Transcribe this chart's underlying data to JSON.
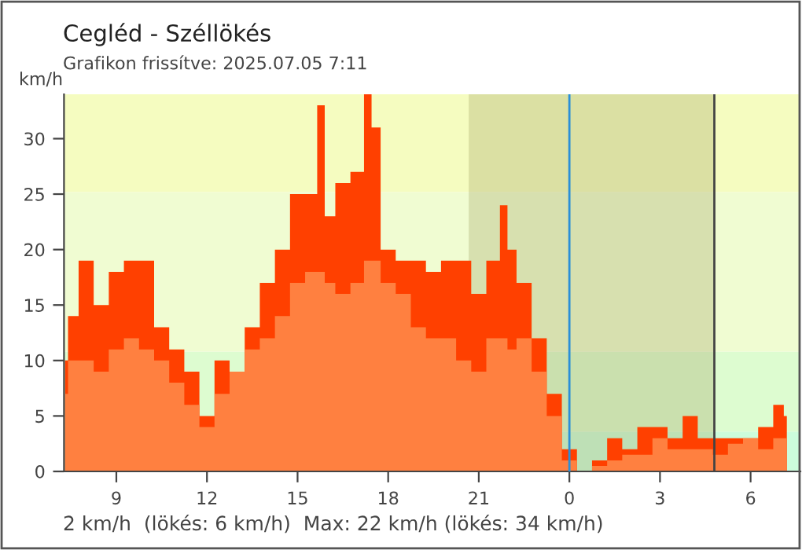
{
  "chart_data": {
    "type": "area",
    "title": "Cegléd - Széllökés",
    "subtitle": "Grafikon frissítve: 2025.07.05 7:11",
    "ylabel": "km/h",
    "annotations": [
      "2 km/h  (lökés: 6 km/h)  Max: 22 km/h (lökés: 34 km/h)"
    ],
    "x": [
      "2025-07-04T07:18",
      "2025-07-04T07:30",
      "2025-07-04T08:00",
      "2025-07-04T08:30",
      "2025-07-04T09:00",
      "2025-07-04T09:30",
      "2025-07-04T10:00",
      "2025-07-04T10:30",
      "2025-07-04T11:00",
      "2025-07-04T11:30",
      "2025-07-04T12:00",
      "2025-07-04T12:30",
      "2025-07-04T13:00",
      "2025-07-04T13:30",
      "2025-07-04T14:00",
      "2025-07-04T14:30",
      "2025-07-04T15:00",
      "2025-07-04T15:30",
      "2025-07-04T15:48",
      "2025-07-04T16:00",
      "2025-07-04T16:30",
      "2025-07-04T17:00",
      "2025-07-04T17:24",
      "2025-07-04T17:30",
      "2025-07-04T18:00",
      "2025-07-04T18:30",
      "2025-07-04T19:00",
      "2025-07-04T19:30",
      "2025-07-04T20:00",
      "2025-07-04T20:30",
      "2025-07-04T21:00",
      "2025-07-04T21:30",
      "2025-07-04T21:54",
      "2025-07-04T22:00",
      "2025-07-04T22:30",
      "2025-07-04T23:00",
      "2025-07-04T23:30",
      "2025-07-05T00:00",
      "2025-07-05T00:30",
      "2025-07-05T01:00",
      "2025-07-05T01:30",
      "2025-07-05T02:00",
      "2025-07-05T02:30",
      "2025-07-05T03:00",
      "2025-07-05T03:30",
      "2025-07-05T04:00",
      "2025-07-05T04:30",
      "2025-07-05T05:00",
      "2025-07-05T05:30",
      "2025-07-05T06:00",
      "2025-07-05T06:30",
      "2025-07-05T07:00",
      "2025-07-05T07:12"
    ],
    "series": [
      {
        "color": "#ff4000",
        "values": [
          10,
          14,
          19,
          15,
          18,
          19,
          19,
          13,
          11,
          9,
          5,
          10,
          9,
          13,
          17,
          20,
          25,
          25,
          33,
          23,
          26,
          27,
          34,
          31,
          20,
          19,
          19,
          18,
          19,
          19,
          16,
          19,
          24,
          20,
          17,
          12,
          7,
          2,
          0,
          1,
          3,
          2,
          4,
          4,
          3,
          5,
          3,
          3,
          3,
          3,
          4,
          6,
          5
        ]
      },
      {
        "color": "#ff8040",
        "values": [
          7,
          10,
          10,
          9,
          11,
          12,
          11,
          10,
          8,
          6,
          4,
          7,
          9,
          11,
          12,
          14,
          17,
          18,
          18,
          17,
          16,
          17,
          19,
          19,
          17,
          16,
          13,
          12,
          12,
          10,
          9,
          12,
          12,
          11,
          12,
          9,
          5,
          1,
          0,
          0.5,
          1,
          1.5,
          1.5,
          3,
          2,
          2,
          2,
          1.5,
          2.5,
          3,
          2,
          3,
          3
        ]
      }
    ],
    "xlim": [
      "2025-07-04T07:16",
      "2025-07-05T07:39"
    ],
    "xticks": [
      {
        "value": "2025-07-04T09:00",
        "label": "9"
      },
      {
        "value": "2025-07-04T12:00",
        "label": "12"
      },
      {
        "value": "2025-07-04T15:00",
        "label": "15"
      },
      {
        "value": "2025-07-04T18:00",
        "label": "18"
      },
      {
        "value": "2025-07-04T21:00",
        "label": "21"
      },
      {
        "value": "2025-07-05T00:00",
        "label": "0"
      },
      {
        "value": "2025-07-05T03:00",
        "label": "3"
      },
      {
        "value": "2025-07-05T06:00",
        "label": "6"
      }
    ],
    "ylim": [
      0,
      34
    ],
    "yticks": [
      0,
      5,
      10,
      15,
      20,
      25,
      30
    ],
    "bands": [
      {
        "axis": "y",
        "from": 0,
        "to": 3.6,
        "color": "#ccfcdc"
      },
      {
        "axis": "y",
        "from": 3.6,
        "to": 10.8,
        "color": "#ddfcd0"
      },
      {
        "axis": "y",
        "from": 10.8,
        "to": 25.2,
        "color": "#f0fcd2"
      },
      {
        "axis": "y",
        "from": 25.2,
        "to": 34,
        "color": "#f5fcc0"
      },
      {
        "axis": "x",
        "from": "2025-07-04T20:40",
        "to": "2025-07-05T04:48",
        "color": "#a0a060"
      }
    ],
    "ref_lines": [
      {
        "axis": "x",
        "value": "2025-07-05T00:00",
        "color": "#2a8fd8"
      },
      {
        "axis": "x",
        "value": "2025-07-05T04:48",
        "color": "#444444"
      }
    ],
    "grid": false,
    "legend": false
  }
}
